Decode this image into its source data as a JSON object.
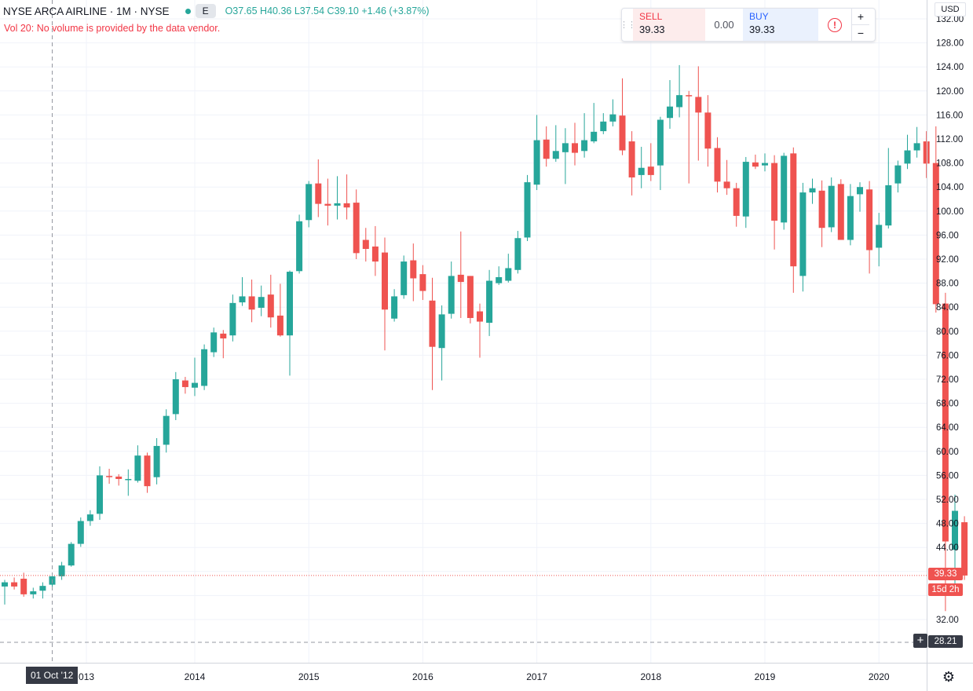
{
  "header": {
    "symbol": "NYSE ARCA AIRLINE · 1M · NYSE",
    "exchange_badge": "E",
    "ohlc": "O37.65 H40.36 L37.54 C39.10 +1.46 (+3.87%)",
    "volume_message": "Vol 20: No volume is provided by the data vendor."
  },
  "trade_panel": {
    "sell_label": "SELL",
    "sell_price": "39.33",
    "spread": "0.00",
    "buy_label": "BUY",
    "buy_price": "39.33",
    "warn_icon": "!",
    "plus": "+",
    "minus": "−"
  },
  "price_axis": {
    "currency": "USD",
    "ticks": [
      "132.00",
      "128.00",
      "124.00",
      "120.00",
      "116.00",
      "112.00",
      "108.00",
      "104.00",
      "100.00",
      "96.00",
      "92.00",
      "88.00",
      "84.00",
      "80.00",
      "76.00",
      "72.00",
      "68.00",
      "64.00",
      "60.00",
      "56.00",
      "52.00",
      "48.00",
      "44.00",
      "32.00"
    ],
    "last_price_label": "39.33",
    "countdown_label": "15d 2h",
    "crosshair_price_label": "28.21",
    "crosshair_button": "+"
  },
  "time_axis": {
    "labels": [
      "013",
      "2014",
      "2015",
      "2016",
      "2017",
      "2018",
      "2019",
      "2020"
    ],
    "crosshair_date_label": "01 Oct '12"
  },
  "colors": {
    "up": "#26a69a",
    "down": "#ef5350",
    "grid": "#f0f3fa",
    "last_price": "#ef5350",
    "crosshair": "#9598a1"
  },
  "icons": {
    "settings": "gear-icon",
    "warning": "warning-icon"
  },
  "chart_data": {
    "type": "candlestick",
    "interval": "1M",
    "y_range": [
      26,
      133
    ],
    "candles": [
      [
        37.5,
        38.2,
        34.5,
        38.6
      ],
      [
        38.2,
        37.5,
        37.0,
        39.0
      ],
      [
        38.8,
        36.2,
        35.8,
        39.8
      ],
      [
        36.2,
        36.7,
        35.5,
        37.3
      ],
      [
        36.8,
        37.6,
        35.5,
        38.2
      ],
      [
        37.8,
        39.2,
        37.0,
        39.6
      ],
      [
        39.2,
        41.0,
        38.6,
        41.6
      ],
      [
        41.0,
        44.6,
        40.8,
        44.9
      ],
      [
        44.6,
        48.4,
        44.1,
        49.0
      ],
      [
        48.4,
        49.5,
        47.6,
        50.2
      ],
      [
        49.6,
        56.0,
        48.6,
        57.5
      ],
      [
        55.9,
        55.8,
        54.6,
        57.1
      ],
      [
        55.8,
        55.4,
        54.3,
        56.2
      ],
      [
        55.3,
        55.4,
        52.6,
        57.0
      ],
      [
        55.1,
        59.3,
        54.8,
        61.0
      ],
      [
        59.3,
        54.2,
        53.1,
        59.8
      ],
      [
        55.7,
        60.9,
        54.5,
        62.2
      ],
      [
        61.1,
        65.9,
        59.8,
        67.0
      ],
      [
        66.2,
        72.0,
        65.2,
        73.2
      ],
      [
        71.8,
        70.7,
        69.6,
        72.4
      ],
      [
        70.6,
        71.4,
        69.2,
        75.6
      ],
      [
        70.9,
        77.0,
        70.2,
        77.8
      ],
      [
        76.5,
        79.8,
        75.7,
        80.6
      ],
      [
        79.6,
        78.8,
        75.5,
        80.2
      ],
      [
        79.3,
        84.7,
        78.3,
        86.1
      ],
      [
        84.8,
        85.8,
        84.2,
        89.0
      ],
      [
        85.8,
        83.6,
        81.5,
        88.6
      ],
      [
        83.9,
        85.7,
        82.5,
        87.6
      ],
      [
        86.1,
        82.3,
        80.6,
        89.4
      ],
      [
        82.6,
        79.3,
        79.1,
        87.9
      ],
      [
        79.3,
        89.9,
        72.6,
        90.1
      ],
      [
        90.0,
        98.3,
        89.6,
        99.4
      ],
      [
        98.5,
        104.5,
        97.3,
        105.0
      ],
      [
        104.6,
        101.2,
        99.0,
        108.6
      ],
      [
        101.2,
        100.9,
        97.6,
        105.4
      ],
      [
        100.9,
        101.3,
        98.6,
        105.8
      ],
      [
        101.3,
        100.6,
        98.6,
        106.1
      ],
      [
        101.4,
        93.0,
        92.0,
        103.6
      ],
      [
        95.2,
        93.7,
        91.6,
        97.2
      ],
      [
        94.1,
        91.6,
        89.2,
        97.5
      ],
      [
        93.1,
        83.6,
        76.8,
        95.6
      ],
      [
        82.1,
        85.8,
        81.6,
        87.0
      ],
      [
        86.0,
        91.6,
        85.4,
        92.6
      ],
      [
        91.8,
        88.8,
        85.0,
        94.6
      ],
      [
        89.5,
        86.7,
        85.2,
        91.0
      ],
      [
        85.1,
        77.4,
        70.2,
        88.9
      ],
      [
        77.2,
        82.8,
        71.8,
        84.3
      ],
      [
        82.9,
        89.2,
        82.1,
        91.6
      ],
      [
        89.4,
        88.2,
        82.2,
        96.6
      ],
      [
        89.2,
        82.2,
        81.3,
        89.2
      ],
      [
        83.3,
        81.6,
        75.6,
        84.6
      ],
      [
        81.4,
        88.4,
        79.2,
        90.2
      ],
      [
        88.0,
        89.0,
        87.7,
        90.8
      ],
      [
        88.4,
        90.5,
        88.1,
        92.9
      ],
      [
        90.2,
        95.5,
        89.6,
        96.7
      ],
      [
        95.6,
        104.8,
        95.0,
        106.0
      ],
      [
        104.4,
        111.8,
        103.5,
        116.0
      ],
      [
        111.9,
        108.7,
        107.4,
        114.1
      ],
      [
        108.7,
        110.0,
        108.2,
        114.3
      ],
      [
        109.8,
        111.3,
        104.5,
        113.8
      ],
      [
        111.3,
        109.7,
        107.6,
        114.7
      ],
      [
        110.0,
        111.8,
        108.9,
        116.3
      ],
      [
        111.6,
        113.2,
        111.3,
        118.0
      ],
      [
        113.3,
        114.9,
        112.8,
        116.3
      ],
      [
        114.9,
        116.1,
        114.1,
        118.6
      ],
      [
        115.9,
        110.1,
        109.3,
        122.1
      ],
      [
        111.6,
        105.6,
        102.6,
        113.3
      ],
      [
        106.0,
        107.2,
        103.8,
        110.7
      ],
      [
        107.4,
        106.0,
        105.0,
        111.3
      ],
      [
        107.6,
        115.2,
        103.5,
        115.7
      ],
      [
        115.5,
        117.4,
        113.7,
        121.8
      ],
      [
        117.3,
        119.3,
        115.6,
        124.3
      ],
      [
        119.3,
        119.2,
        104.6,
        120.0
      ],
      [
        119.0,
        116.4,
        108.4,
        124.1
      ],
      [
        116.4,
        110.4,
        107.4,
        119.3
      ],
      [
        110.5,
        104.9,
        103.1,
        112.3
      ],
      [
        104.9,
        103.8,
        102.7,
        108.5
      ],
      [
        103.8,
        99.2,
        97.4,
        104.7
      ],
      [
        99.1,
        108.2,
        97.2,
        109.0
      ],
      [
        108.1,
        107.4,
        107.0,
        109.4
      ],
      [
        107.6,
        108.0,
        106.6,
        109.6
      ],
      [
        108.0,
        98.4,
        93.6,
        109.3
      ],
      [
        98.1,
        109.2,
        96.9,
        109.7
      ],
      [
        109.6,
        90.8,
        86.4,
        110.6
      ],
      [
        89.2,
        103.1,
        86.6,
        104.7
      ],
      [
        103.1,
        103.8,
        101.2,
        105.4
      ],
      [
        103.4,
        97.2,
        94.0,
        105.1
      ],
      [
        97.3,
        104.2,
        96.5,
        105.6
      ],
      [
        104.5,
        95.2,
        95.2,
        105.3
      ],
      [
        95.2,
        102.5,
        94.3,
        104.5
      ],
      [
        102.8,
        104.0,
        99.9,
        104.8
      ],
      [
        103.6,
        93.5,
        89.6,
        105.0
      ],
      [
        93.9,
        97.7,
        90.8,
        99.7
      ],
      [
        97.6,
        104.3,
        97.1,
        110.5
      ],
      [
        104.6,
        107.6,
        103.1,
        108.4
      ],
      [
        107.9,
        110.1,
        107.0,
        112.7
      ],
      [
        110.1,
        111.3,
        108.9,
        114.0
      ],
      [
        111.6,
        107.9,
        105.5,
        113.3
      ],
      [
        108.0,
        84.5,
        83.1,
        114.1
      ],
      [
        84.6,
        45.0,
        33.4,
        86.4
      ],
      [
        43.6,
        50.1,
        36.8,
        52.8
      ],
      [
        48.2,
        39.33,
        38.6,
        49.2
      ]
    ]
  }
}
